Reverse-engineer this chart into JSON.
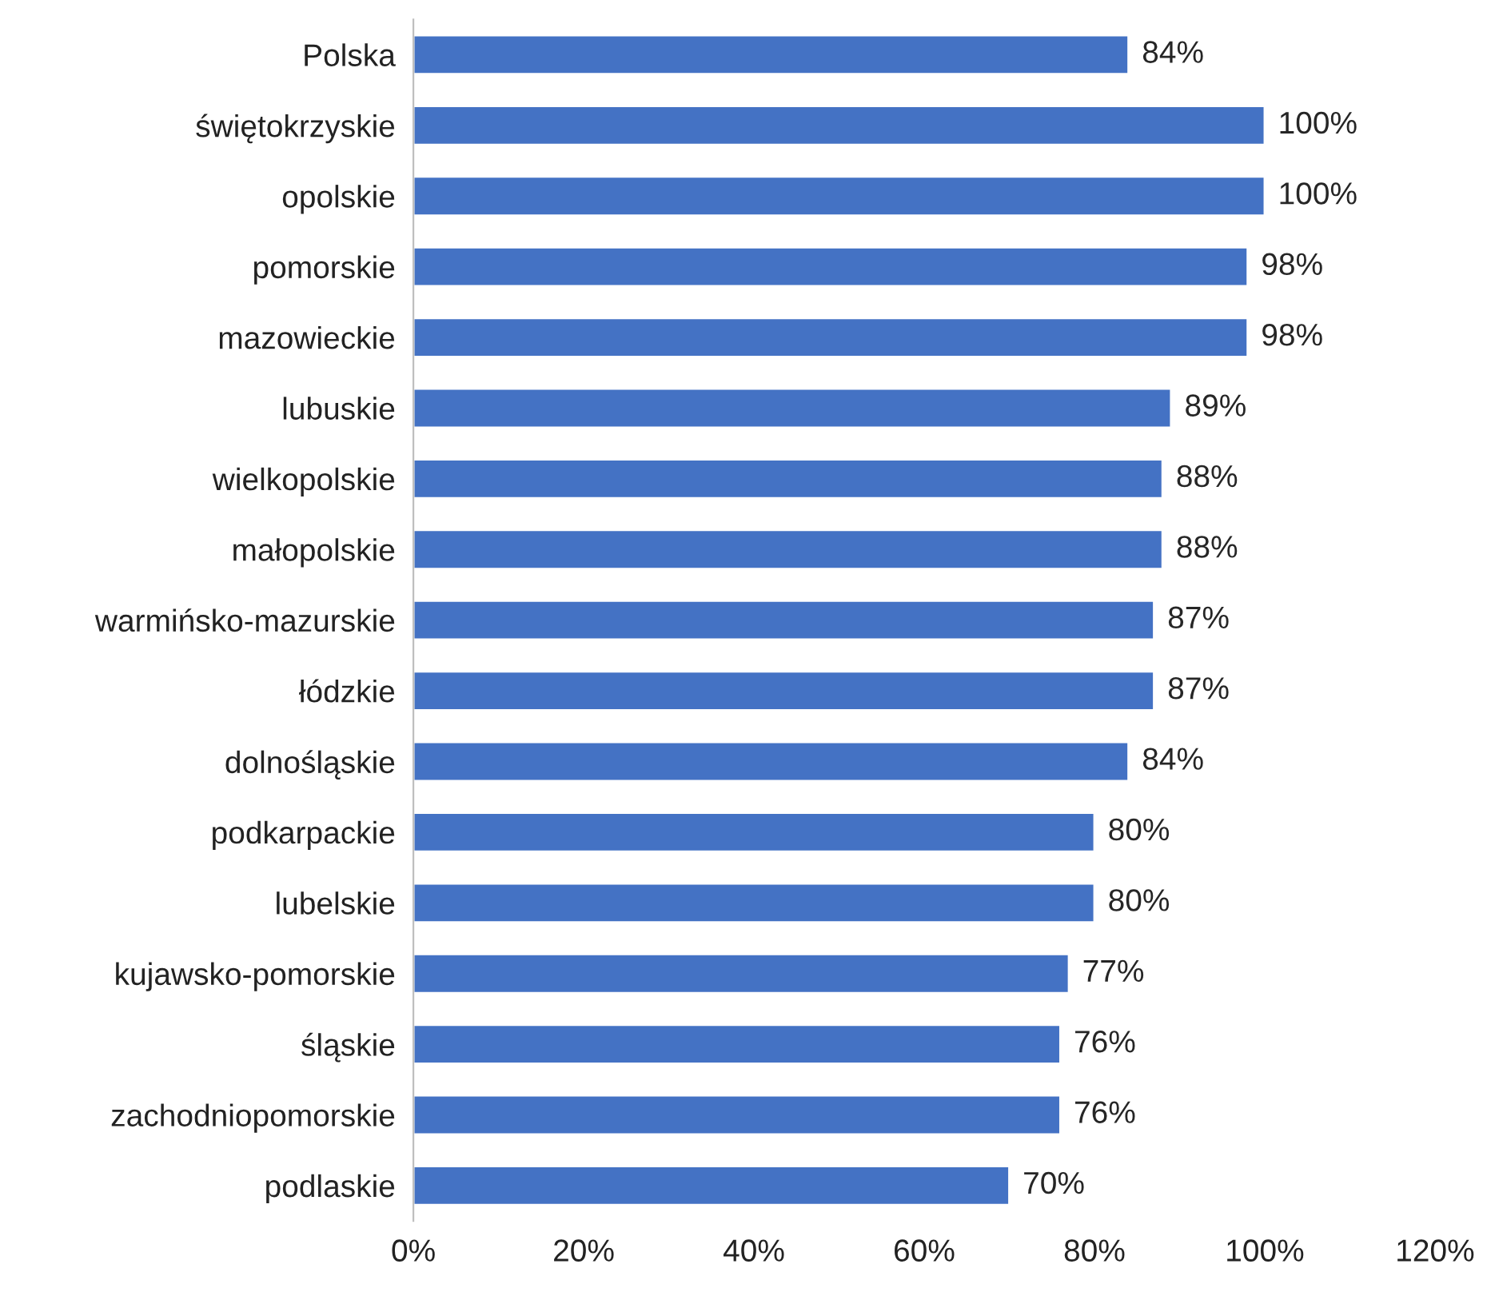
{
  "chart_data": {
    "type": "bar",
    "orientation": "horizontal",
    "categories": [
      "Polska",
      "świętokrzyskie",
      "opolskie",
      "pomorskie",
      "mazowieckie",
      "lubuskie",
      "wielkopolskie",
      "małopolskie",
      "warmińsko-mazurskie",
      "łódzkie",
      "dolnośląskie",
      "podkarpackie",
      "lubelskie",
      "kujawsko-pomorskie",
      "śląskie",
      "zachodniopomorskie",
      "podlaskie"
    ],
    "values": [
      84,
      100,
      100,
      98,
      98,
      89,
      88,
      88,
      87,
      87,
      84,
      80,
      80,
      77,
      76,
      76,
      70
    ],
    "color": "#4472c4",
    "value_labels": [
      "84%",
      "100%",
      "100%",
      "98%",
      "98%",
      "89%",
      "88%",
      "88%",
      "87%",
      "87%",
      "84%",
      "80%",
      "80%",
      "77%",
      "76%",
      "76%",
      "70%"
    ],
    "xlim": [
      0,
      120
    ],
    "xticks": [
      {
        "value": 0,
        "label": "0%"
      },
      {
        "value": 20,
        "label": "20%"
      },
      {
        "value": 40,
        "label": "40%"
      },
      {
        "value": 60,
        "label": "60%"
      },
      {
        "value": 80,
        "label": "80%"
      },
      {
        "value": 100,
        "label": "100%"
      },
      {
        "value": 120,
        "label": "120%"
      }
    ],
    "grid": false,
    "legend": false
  }
}
